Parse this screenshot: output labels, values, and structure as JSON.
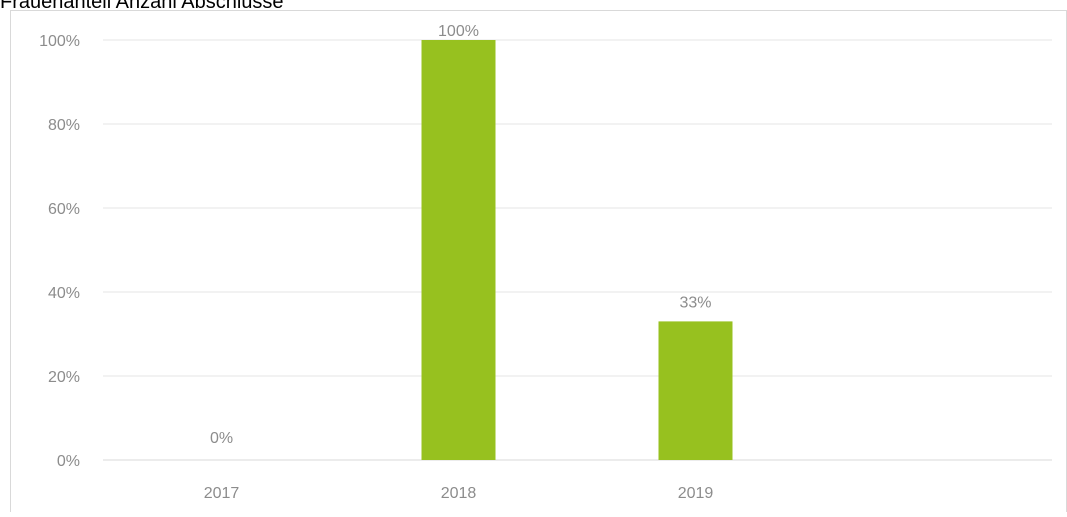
{
  "chart_data": {
    "type": "bar",
    "title": "Frauenanteil Anzahl Abschlüsse",
    "xlabel": "",
    "ylabel": "",
    "categories": [
      "2017",
      "2018",
      "2019"
    ],
    "values": [
      0,
      100,
      33
    ],
    "data_labels": [
      "0%",
      "100%",
      "33%"
    ],
    "ylim": [
      0,
      100
    ],
    "yticks": [
      0,
      20,
      40,
      60,
      80,
      100
    ],
    "ytick_labels": [
      "0%",
      "20%",
      "40%",
      "60%",
      "80%",
      "100%"
    ],
    "grid": true,
    "legend": "none",
    "colors": {
      "bar": "#97c11f",
      "tick_text": "#8c8c8c",
      "grid": "#e6e6e6"
    }
  }
}
